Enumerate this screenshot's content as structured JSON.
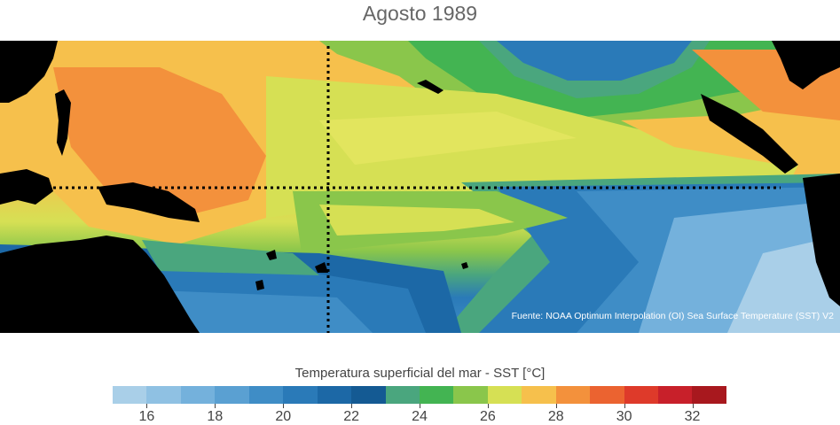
{
  "title": "Agosto 1989",
  "source": "Fuente: NOAA Optimum Interpolation (OI) Sea Surface Temperature (SST) V2",
  "colorbar": {
    "title": "Temperatura superficial del mar - SST  [°C]",
    "range": [
      15,
      33
    ],
    "colors": [
      "#a9cfe8",
      "#8fc1e3",
      "#74b1dc",
      "#5aa0d2",
      "#3f8dc6",
      "#2a7ab8",
      "#1c68a6",
      "#145a93",
      "#4aa67e",
      "#43b452",
      "#8ac64b",
      "#d6e054",
      "#f6c04c",
      "#f3913c",
      "#eb6330",
      "#de3a2a",
      "#c8202a",
      "#a8181e"
    ],
    "ticks": [
      "16",
      "18",
      "20",
      "22",
      "24",
      "26",
      "28",
      "30",
      "32"
    ]
  },
  "colors": {
    "land": "#000000",
    "reference_lines": "#000000"
  }
}
